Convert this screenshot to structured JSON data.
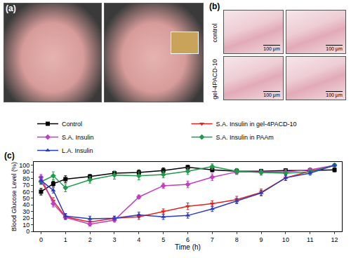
{
  "panels": {
    "a": {
      "label": "(a)"
    },
    "b": {
      "label": "(b)",
      "rows": [
        "control",
        "gel-4PACD-10"
      ],
      "scale_bar": "100 μm"
    }
  },
  "chart_data": {
    "type": "line",
    "label": "(c)",
    "x_label": "Time (h)",
    "y_label": "Blood Glucose Level (%)",
    "x": [
      0,
      0.5,
      1,
      2,
      3,
      4,
      5,
      6,
      7,
      8,
      9,
      10,
      11,
      12
    ],
    "xlim": [
      -0.3,
      12.3
    ],
    "xticks": [
      0,
      1,
      2,
      3,
      4,
      5,
      6,
      7,
      8,
      9,
      10,
      11,
      12
    ],
    "ylim": [
      0,
      105
    ],
    "yticks": [
      0,
      10,
      20,
      30,
      40,
      50,
      60,
      70,
      80,
      90,
      100
    ],
    "grid": false,
    "legend": "top left",
    "series": [
      {
        "name": "Control",
        "color": "#000000",
        "marker": "square",
        "values": [
          60,
          72,
          79,
          83,
          88,
          89,
          92,
          97,
          93,
          91,
          91,
          92,
          92,
          93
        ],
        "errors": [
          5,
          4,
          5,
          3,
          3,
          4,
          4,
          3,
          3,
          4,
          3,
          3,
          3,
          3
        ]
      },
      {
        "name": "S.A. Insulin in gel-4PACD-10",
        "color": "#e8201c",
        "marker": "triangle-down",
        "values": [
          76,
          46,
          22,
          14,
          20,
          22,
          30,
          38,
          42,
          48,
          59,
          81,
          91,
          100
        ],
        "errors": [
          4,
          5,
          4,
          3,
          3,
          4,
          4,
          5,
          4,
          5,
          5,
          4,
          3,
          2
        ]
      },
      {
        "name": "S.A. Insulin",
        "color": "#c23ec2",
        "marker": "diamond",
        "values": [
          82,
          42,
          21,
          11,
          17,
          52,
          69,
          71,
          82,
          90,
          90,
          90,
          93,
          100
        ],
        "errors": [
          4,
          5,
          3,
          3,
          3,
          3,
          4,
          5,
          5,
          4,
          3,
          4,
          3,
          2
        ]
      },
      {
        "name": "S.A. Insulin in PAAm",
        "color": "#1f9a4a",
        "marker": "diamond",
        "values": [
          75,
          84,
          66,
          78,
          85,
          84,
          86,
          91,
          98,
          91,
          89,
          88,
          90,
          100
        ],
        "errors": [
          4,
          6,
          6,
          5,
          6,
          6,
          5,
          5,
          4,
          4,
          4,
          4,
          3,
          2
        ]
      },
      {
        "name": "L.A. Insulin",
        "color": "#2a3bc4",
        "marker": "triangle-up",
        "values": [
          77,
          62,
          23,
          19,
          20,
          25,
          22,
          24,
          34,
          46,
          58,
          81,
          88,
          100
        ],
        "errors": [
          5,
          4,
          4,
          4,
          3,
          4,
          4,
          4,
          4,
          4,
          4,
          4,
          3,
          2
        ]
      }
    ]
  }
}
